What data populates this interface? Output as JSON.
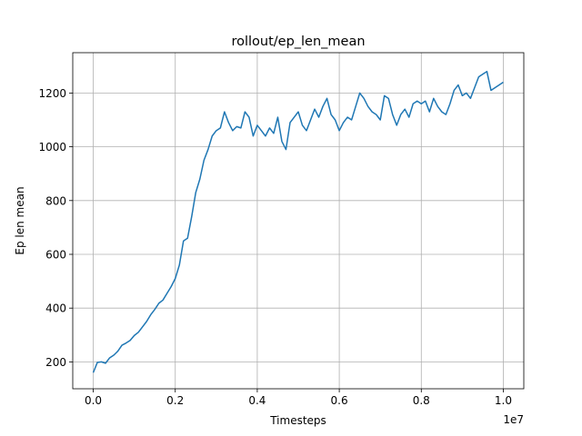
{
  "chart_data": {
    "type": "line",
    "title": "rollout/ep_len_mean",
    "xlabel": "Timesteps",
    "ylabel": "Ep len mean",
    "x_offset_label": "1e7",
    "xlim": [
      -0.05,
      1.05
    ],
    "ylim": [
      100,
      1350
    ],
    "x_ticks": [
      0.0,
      0.2,
      0.4,
      0.6,
      0.8,
      1.0
    ],
    "x_tick_labels": [
      "0.0",
      "0.2",
      "0.4",
      "0.6",
      "0.8",
      "1.0"
    ],
    "y_ticks": [
      200,
      400,
      600,
      800,
      1000,
      1200
    ],
    "y_tick_labels": [
      "200",
      "400",
      "600",
      "800",
      "1000",
      "1200"
    ],
    "grid": true,
    "series": [
      {
        "color": "#1f77b4",
        "x": [
          0.0,
          0.01,
          0.02,
          0.03,
          0.04,
          0.05,
          0.06,
          0.07,
          0.08,
          0.09,
          0.1,
          0.11,
          0.12,
          0.13,
          0.14,
          0.15,
          0.16,
          0.17,
          0.18,
          0.19,
          0.2,
          0.21,
          0.22,
          0.23,
          0.24,
          0.25,
          0.26,
          0.27,
          0.28,
          0.29,
          0.3,
          0.31,
          0.32,
          0.33,
          0.34,
          0.35,
          0.36,
          0.37,
          0.38,
          0.39,
          0.4,
          0.41,
          0.42,
          0.43,
          0.44,
          0.45,
          0.46,
          0.47,
          0.48,
          0.49,
          0.5,
          0.51,
          0.52,
          0.53,
          0.54,
          0.55,
          0.56,
          0.57,
          0.58,
          0.59,
          0.6,
          0.61,
          0.62,
          0.63,
          0.64,
          0.65,
          0.66,
          0.67,
          0.68,
          0.69,
          0.7,
          0.71,
          0.72,
          0.73,
          0.74,
          0.75,
          0.76,
          0.77,
          0.78,
          0.79,
          0.8,
          0.81,
          0.82,
          0.83,
          0.84,
          0.85,
          0.86,
          0.87,
          0.88,
          0.89,
          0.9,
          0.91,
          0.92,
          0.93,
          0.94,
          0.95,
          0.96,
          0.97,
          0.98,
          0.99,
          1.0
        ],
        "values": [
          160,
          198,
          200,
          195,
          215,
          225,
          240,
          262,
          270,
          280,
          298,
          310,
          330,
          350,
          375,
          395,
          418,
          430,
          455,
          480,
          510,
          560,
          650,
          660,
          740,
          830,
          880,
          950,
          990,
          1040,
          1060,
          1070,
          1130,
          1090,
          1060,
          1075,
          1070,
          1130,
          1110,
          1040,
          1080,
          1060,
          1040,
          1070,
          1050,
          1110,
          1020,
          990,
          1090,
          1110,
          1130,
          1080,
          1060,
          1100,
          1140,
          1110,
          1150,
          1180,
          1120,
          1100,
          1060,
          1090,
          1110,
          1100,
          1150,
          1200,
          1180,
          1150,
          1130,
          1120,
          1100,
          1190,
          1180,
          1120,
          1080,
          1120,
          1140,
          1110,
          1160,
          1170,
          1160,
          1170,
          1130,
          1180,
          1150,
          1130,
          1120,
          1160,
          1210,
          1230,
          1190,
          1200,
          1180,
          1220,
          1260,
          1270,
          1280,
          1210,
          1220,
          1230,
          1240
        ]
      }
    ]
  }
}
